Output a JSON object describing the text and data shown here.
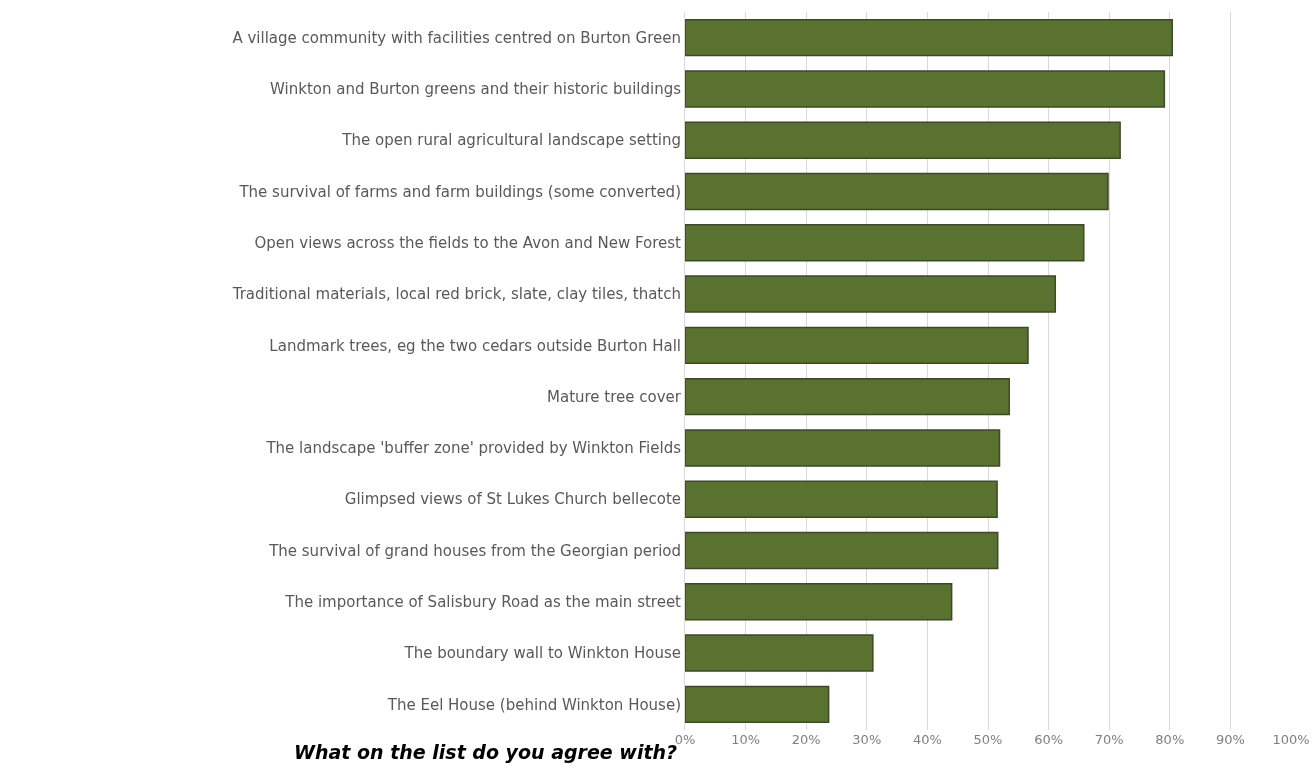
{
  "chart_data": {
    "type": "bar",
    "orientation": "horizontal",
    "title": "What on the list do you agree with?",
    "categories": [
      "A village community with facilities centred on Burton Green",
      "Winkton and Burton greens and their historic buildings",
      "The open rural agricultural landscape setting",
      "The survival of farms and farm buildings (some converted)",
      "Open views across the fields to the Avon and New Forest",
      "Traditional materials, local red brick, slate, clay tiles, thatch",
      "Landmark trees, eg the two cedars outside Burton Hall",
      "Mature tree cover",
      "The landscape 'buffer zone' provided by Winkton Fields",
      "Glimpsed views of St Lukes Church bellecote",
      "The survival of grand houses from the Georgian period",
      "The importance of Salisbury Road as the main street",
      "The boundary wall to Winkton House",
      "The Eel House (behind Winkton House)"
    ],
    "values": [
      80.4,
      79.1,
      71.8,
      69.8,
      65.8,
      61.1,
      56.6,
      53.5,
      51.9,
      51.5,
      51.6,
      44.0,
      31.0,
      23.7
    ],
    "color": "#5a7230",
    "xlim": [
      0,
      100
    ],
    "xticks": [
      {
        "value": 0,
        "label": "0%"
      },
      {
        "value": 10,
        "label": "10%"
      },
      {
        "value": 20,
        "label": "20%"
      },
      {
        "value": 30,
        "label": "30%"
      },
      {
        "value": 40,
        "label": "40%"
      },
      {
        "value": 50,
        "label": "50%"
      },
      {
        "value": 60,
        "label": "60%"
      },
      {
        "value": 70,
        "label": "70%"
      },
      {
        "value": 80,
        "label": "80%"
      },
      {
        "value": 90,
        "label": "90%"
      },
      {
        "value": 100,
        "label": "100%"
      }
    ],
    "grid": "x",
    "legend": false
  }
}
